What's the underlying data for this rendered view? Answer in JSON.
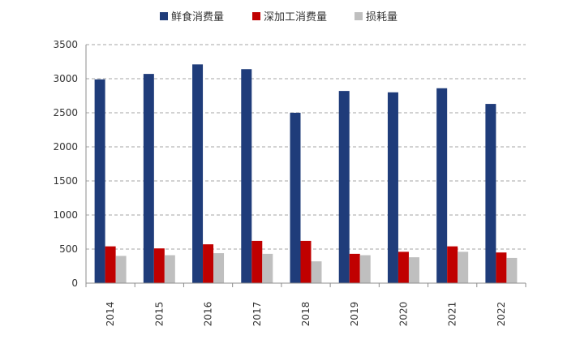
{
  "chart_data": {
    "type": "bar",
    "categories": [
      "2014",
      "2015",
      "2016",
      "2017",
      "2018",
      "2019",
      "2020",
      "2021",
      "2022"
    ],
    "series": [
      {
        "name": "鲜食消费量",
        "color": "#1f3c7a",
        "values": [
          2990,
          3070,
          3210,
          3140,
          2500,
          2820,
          2800,
          2860,
          2630
        ]
      },
      {
        "name": "深加工消费量",
        "color": "#c00000",
        "values": [
          540,
          510,
          570,
          620,
          620,
          430,
          460,
          540,
          450
        ]
      },
      {
        "name": "损耗量",
        "color": "#bfbfbf",
        "values": [
          400,
          410,
          440,
          430,
          320,
          410,
          380,
          460,
          370
        ]
      }
    ],
    "yticks": [
      "0",
      "500",
      "1000",
      "1500",
      "2000",
      "2500",
      "3000",
      "3500"
    ],
    "ylim": [
      0,
      3500
    ],
    "grid": true,
    "legend_position": "top-center",
    "title": "",
    "xlabel": "",
    "ylabel": ""
  }
}
